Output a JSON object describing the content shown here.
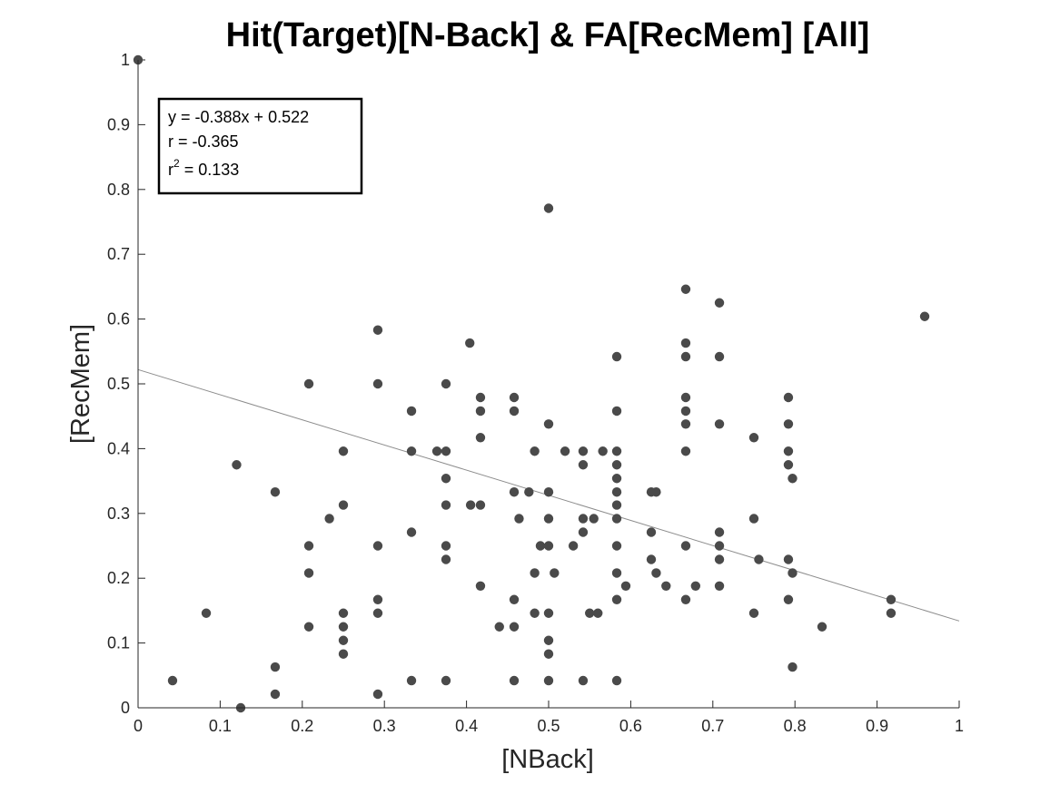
{
  "chart_data": {
    "type": "scatter",
    "title": "Hit(Target)[N-Back] & FA[RecMem] [All]",
    "xlabel": "[NBack]",
    "ylabel": "[RecMem]",
    "xlim": [
      0,
      1
    ],
    "ylim": [
      0,
      1
    ],
    "xticks": [
      "0",
      "0.1",
      "0.2",
      "0.3",
      "0.4",
      "0.5",
      "0.6",
      "0.7",
      "0.8",
      "0.9",
      "1"
    ],
    "yticks": [
      "0",
      "0.1",
      "0.2",
      "0.3",
      "0.4",
      "0.5",
      "0.6",
      "0.7",
      "0.8",
      "0.9",
      "1"
    ],
    "grid": false,
    "fit_line": {
      "slope": -0.388,
      "intercept": 0.522
    },
    "stats": {
      "equation": "y = -0.388x + 0.522",
      "r": "r = -0.365",
      "r2_prefix": "r",
      "r2_exp": "2",
      "r2_value": " = 0.133"
    },
    "colors": {
      "marker": "#4a4a4a",
      "fit_line": "#8c8c8c",
      "axis": "#262626"
    },
    "points": [
      [
        0,
        1
      ],
      [
        0.042,
        0.042
      ],
      [
        0.083,
        0.146
      ],
      [
        0.12,
        0.375
      ],
      [
        0.125,
        0.0
      ],
      [
        0.167,
        0.333
      ],
      [
        0.167,
        0.063
      ],
      [
        0.167,
        0.021
      ],
      [
        0.208,
        0.5
      ],
      [
        0.208,
        0.25
      ],
      [
        0.208,
        0.208
      ],
      [
        0.208,
        0.125
      ],
      [
        0.233,
        0.292
      ],
      [
        0.25,
        0.396
      ],
      [
        0.25,
        0.313
      ],
      [
        0.25,
        0.146
      ],
      [
        0.25,
        0.125
      ],
      [
        0.25,
        0.104
      ],
      [
        0.25,
        0.083
      ],
      [
        0.292,
        0.583
      ],
      [
        0.292,
        0.5
      ],
      [
        0.292,
        0.25
      ],
      [
        0.292,
        0.167
      ],
      [
        0.292,
        0.146
      ],
      [
        0.292,
        0.021
      ],
      [
        0.333,
        0.458
      ],
      [
        0.333,
        0.396
      ],
      [
        0.333,
        0.271
      ],
      [
        0.333,
        0.042
      ],
      [
        0.364,
        0.396
      ],
      [
        0.375,
        0.5
      ],
      [
        0.375,
        0.396
      ],
      [
        0.375,
        0.354
      ],
      [
        0.375,
        0.313
      ],
      [
        0.375,
        0.25
      ],
      [
        0.375,
        0.229
      ],
      [
        0.375,
        0.042
      ],
      [
        0.404,
        0.563
      ],
      [
        0.405,
        0.313
      ],
      [
        0.417,
        0.479
      ],
      [
        0.417,
        0.458
      ],
      [
        0.417,
        0.417
      ],
      [
        0.417,
        0.313
      ],
      [
        0.417,
        0.188
      ],
      [
        0.44,
        0.125
      ],
      [
        0.458,
        0.479
      ],
      [
        0.458,
        0.458
      ],
      [
        0.458,
        0.333
      ],
      [
        0.458,
        0.167
      ],
      [
        0.458,
        0.125
      ],
      [
        0.458,
        0.042
      ],
      [
        0.464,
        0.292
      ],
      [
        0.476,
        0.333
      ],
      [
        0.483,
        0.396
      ],
      [
        0.483,
        0.208
      ],
      [
        0.483,
        0.146
      ],
      [
        0.49,
        0.25
      ],
      [
        0.5,
        0.771
      ],
      [
        0.5,
        0.438
      ],
      [
        0.5,
        0.333
      ],
      [
        0.5,
        0.292
      ],
      [
        0.5,
        0.25
      ],
      [
        0.5,
        0.146
      ],
      [
        0.5,
        0.104
      ],
      [
        0.5,
        0.083
      ],
      [
        0.5,
        0.042
      ],
      [
        0.507,
        0.208
      ],
      [
        0.52,
        0.396
      ],
      [
        0.53,
        0.25
      ],
      [
        0.542,
        0.396
      ],
      [
        0.542,
        0.375
      ],
      [
        0.542,
        0.292
      ],
      [
        0.542,
        0.271
      ],
      [
        0.542,
        0.042
      ],
      [
        0.55,
        0.146
      ],
      [
        0.555,
        0.292
      ],
      [
        0.56,
        0.146
      ],
      [
        0.566,
        0.396
      ],
      [
        0.583,
        0.542
      ],
      [
        0.583,
        0.458
      ],
      [
        0.583,
        0.396
      ],
      [
        0.583,
        0.375
      ],
      [
        0.583,
        0.354
      ],
      [
        0.583,
        0.333
      ],
      [
        0.583,
        0.313
      ],
      [
        0.583,
        0.292
      ],
      [
        0.583,
        0.25
      ],
      [
        0.583,
        0.208
      ],
      [
        0.583,
        0.167
      ],
      [
        0.583,
        0.042
      ],
      [
        0.594,
        0.188
      ],
      [
        0.625,
        0.333
      ],
      [
        0.625,
        0.271
      ],
      [
        0.625,
        0.229
      ],
      [
        0.631,
        0.333
      ],
      [
        0.631,
        0.208
      ],
      [
        0.643,
        0.188
      ],
      [
        0.667,
        0.646
      ],
      [
        0.667,
        0.563
      ],
      [
        0.667,
        0.542
      ],
      [
        0.667,
        0.479
      ],
      [
        0.667,
        0.458
      ],
      [
        0.667,
        0.438
      ],
      [
        0.667,
        0.396
      ],
      [
        0.667,
        0.25
      ],
      [
        0.667,
        0.167
      ],
      [
        0.679,
        0.188
      ],
      [
        0.708,
        0.625
      ],
      [
        0.708,
        0.542
      ],
      [
        0.708,
        0.438
      ],
      [
        0.708,
        0.271
      ],
      [
        0.708,
        0.25
      ],
      [
        0.708,
        0.229
      ],
      [
        0.708,
        0.188
      ],
      [
        0.75,
        0.417
      ],
      [
        0.75,
        0.292
      ],
      [
        0.75,
        0.146
      ],
      [
        0.756,
        0.229
      ],
      [
        0.792,
        0.479
      ],
      [
        0.792,
        0.438
      ],
      [
        0.792,
        0.396
      ],
      [
        0.792,
        0.375
      ],
      [
        0.792,
        0.229
      ],
      [
        0.792,
        0.167
      ],
      [
        0.797,
        0.354
      ],
      [
        0.797,
        0.208
      ],
      [
        0.797,
        0.063
      ],
      [
        0.833,
        0.125
      ],
      [
        0.917,
        0.167
      ],
      [
        0.917,
        0.146
      ],
      [
        0.958,
        0.604
      ]
    ]
  }
}
